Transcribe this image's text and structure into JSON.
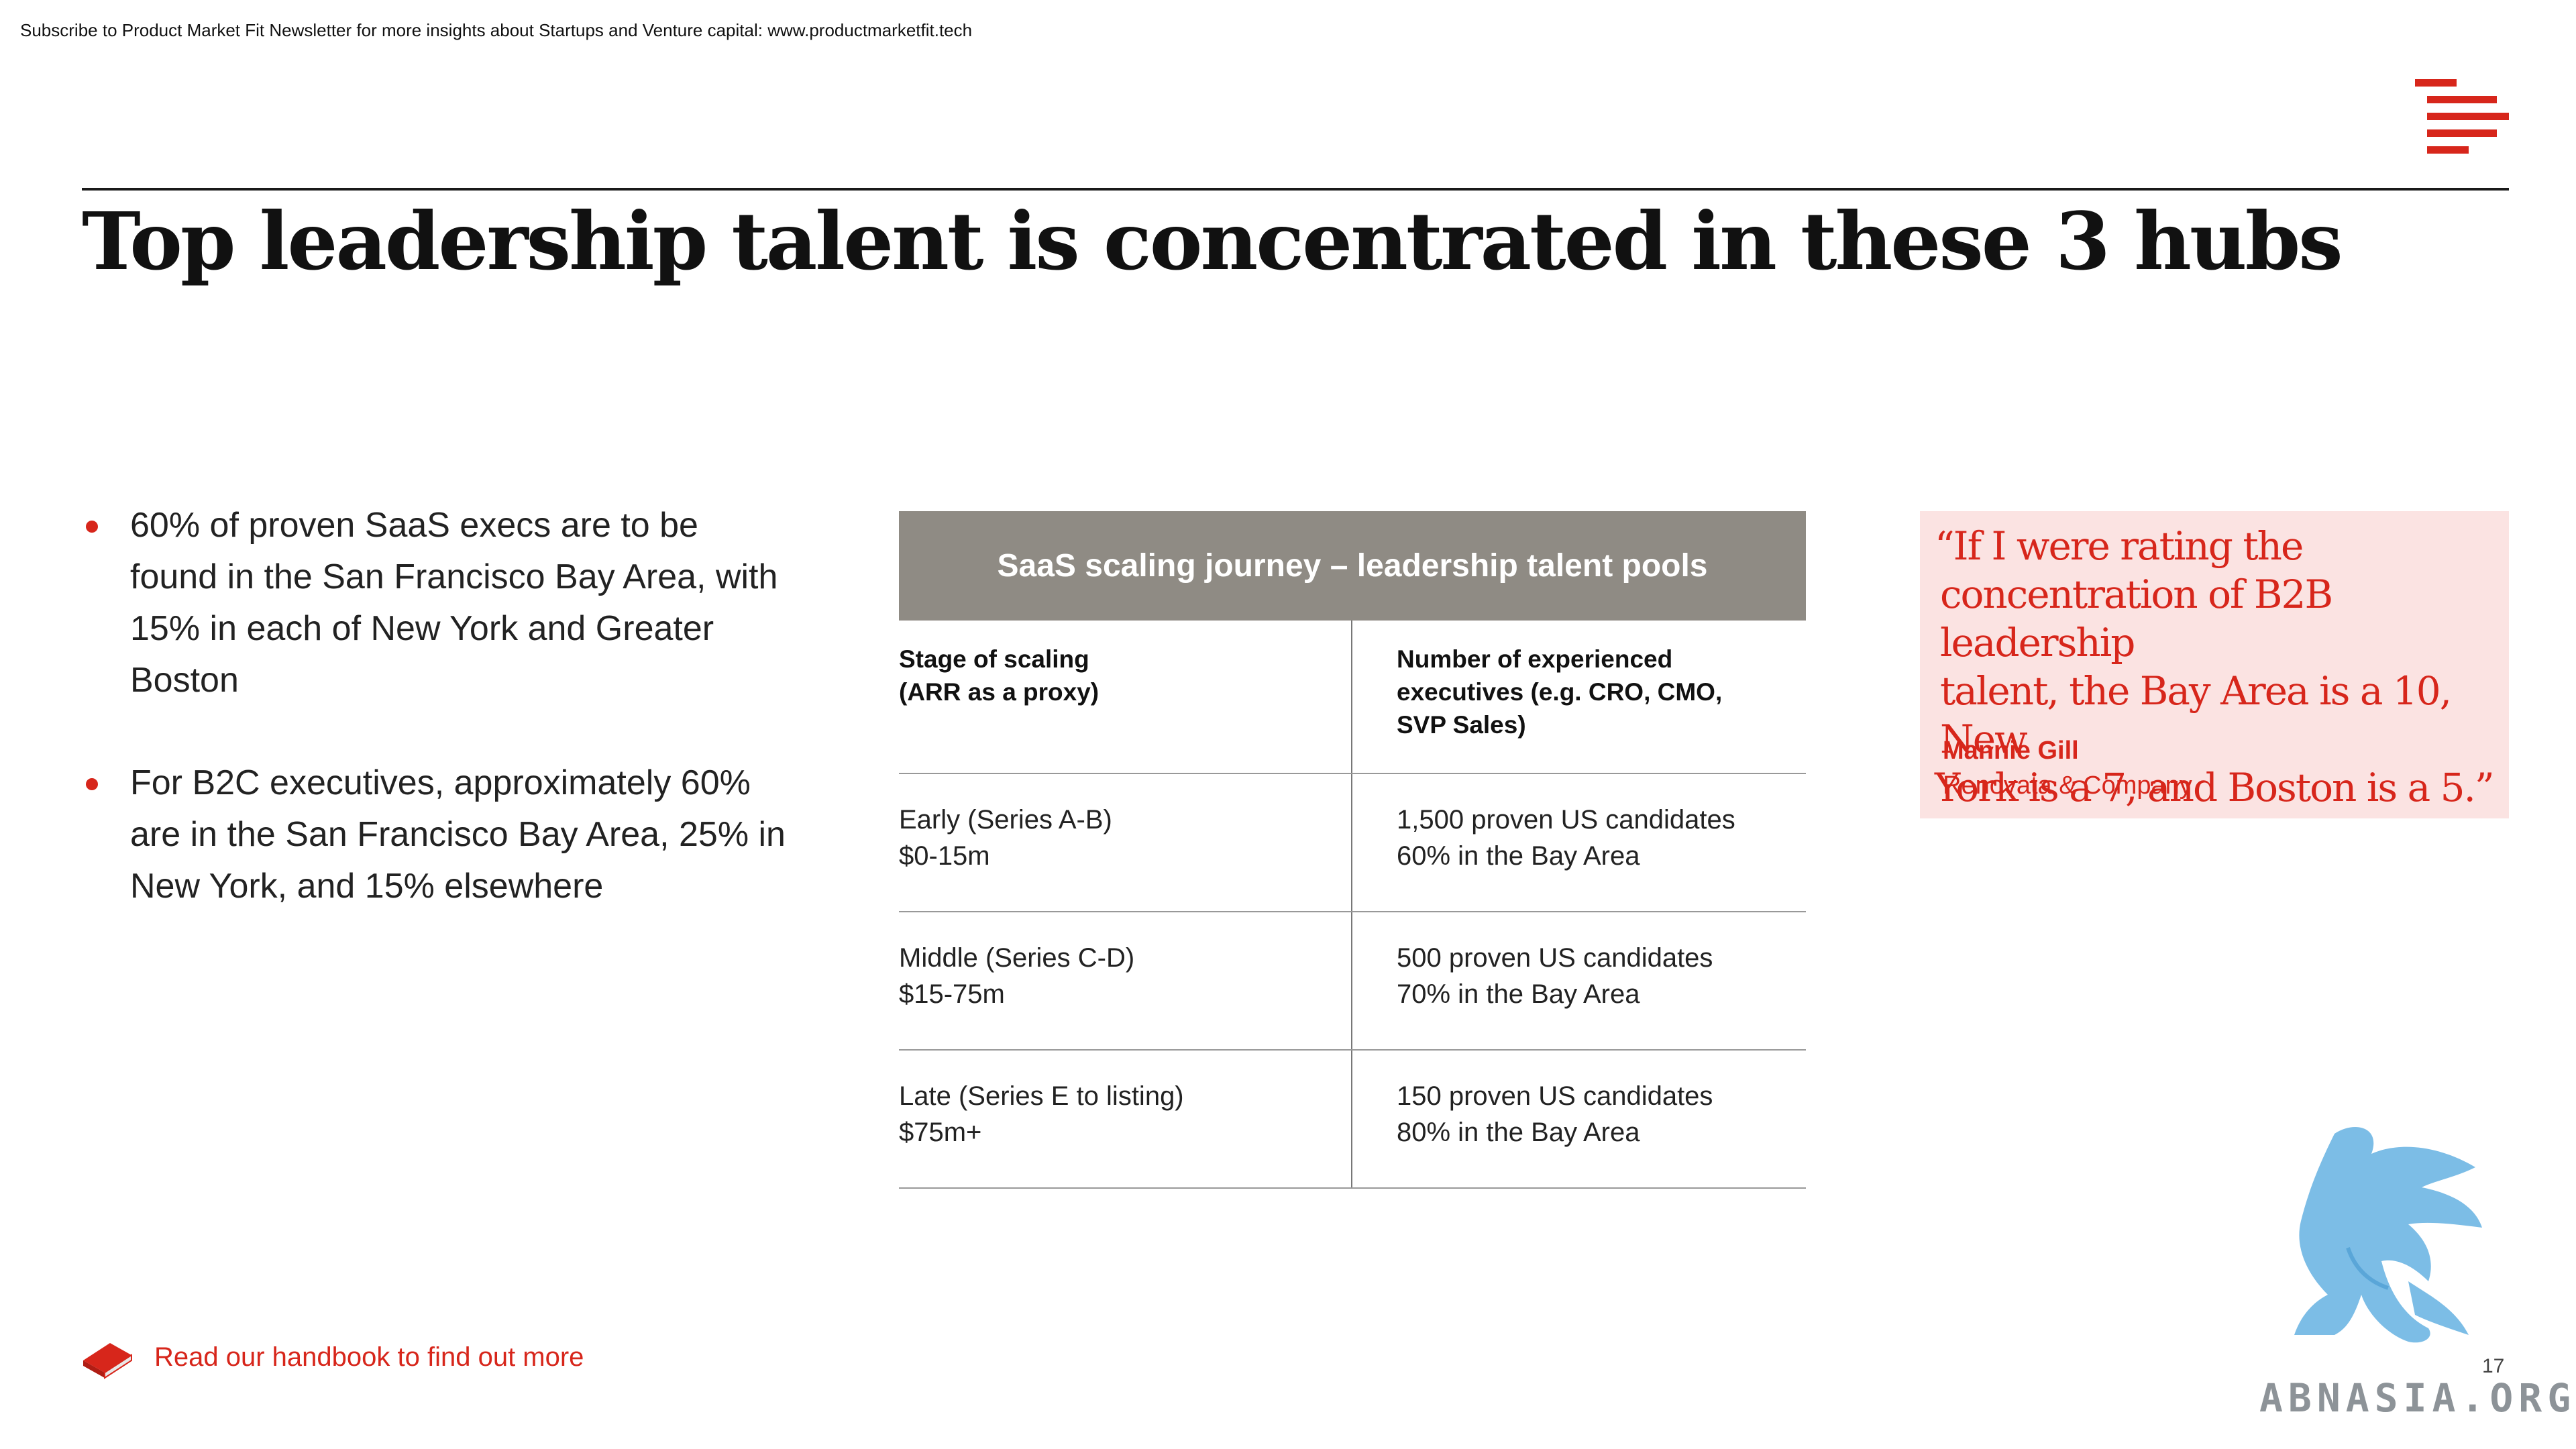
{
  "newsletter": "Subscribe to Product Market Fit Newsletter for more insights about Startups and Venture capital:  www.productmarketfit.tech",
  "title": "Top leadership talent is concentrated in these 3 hubs",
  "bullets": [
    "60% of proven SaaS execs are to be found in the San Francisco Bay Area, with 15% in each of New York and Greater Boston",
    "For B2C executives, approximately 60% are in the San Francisco Bay Area, 25% in New York, and 15% elsewhere"
  ],
  "table": {
    "title": "SaaS scaling journey – leadership talent pools",
    "headers": {
      "col1_line1": "Stage of scaling",
      "col1_line2": "(ARR as a proxy)",
      "col2_line1": "Number of experienced",
      "col2_line2": "executives (e.g. CRO, CMO,",
      "col2_line3": "SVP Sales)"
    },
    "rows": [
      {
        "stage": "Early (Series A-B)",
        "arr": "$0-15m",
        "candidates": "1,500 proven US candidates",
        "bay": "60% in the Bay Area"
      },
      {
        "stage": "Middle (Series C-D)",
        "arr": "$15-75m",
        "candidates": "500 proven US candidates",
        "bay": "70% in the Bay Area"
      },
      {
        "stage": "Late (Series E to listing)",
        "arr": "$75m+",
        "candidates": "150 proven US candidates",
        "bay": "80% in the Bay Area"
      }
    ]
  },
  "quote": {
    "line1": "“If I were rating the",
    "line2": "concentration of B2B leadership",
    "line3": "talent, the Bay Area is a 10, New",
    "line4": "York is a 7, and Boston is a 5.”",
    "name": "Mannie Gill",
    "org": "Renovata & Company"
  },
  "handbook_link": "Read our handbook to find out more",
  "page_number": "17",
  "watermark": "ABNASIA.ORG",
  "colors": {
    "accent": "#d7261b",
    "table_header": "#8f8b84",
    "quote_bg": "#fbe3e2"
  },
  "icons": {
    "logo": "red-stripes-logo-icon",
    "book": "book-icon",
    "watermark": "griffin-icon"
  }
}
